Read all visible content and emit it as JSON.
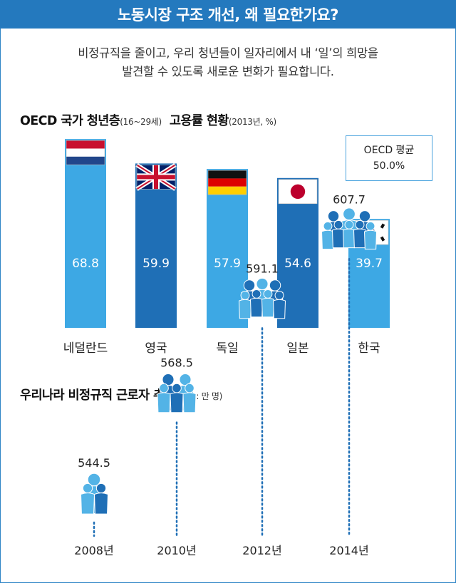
{
  "header": {
    "title": "노동시장 구조 개선, 왜 필요한가요?"
  },
  "intro": {
    "line1": "비정규직을 줄이고, 우리 청년들이 일자리에서 내 ‘일’의 희망을",
    "line2": "발견할 수 있도록 새로운 변화가 필요합니다."
  },
  "section1": {
    "title": "OECD 국가 청년층",
    "title_sub": "(16~29세)",
    "title2": "고용률 현황",
    "title2_sub": "(2013년, %)"
  },
  "avg": {
    "label": "OECD 평균",
    "value": "50.0%"
  },
  "section2": {
    "title": "우리나라 비정규직 근로자 추이",
    "title_sub": "(단위 : 만 명)"
  },
  "colors": {
    "header": "#2479be",
    "bar_light": "#3da8e4",
    "bar_dark": "#1f6fb6",
    "people_light": "#53b3e6",
    "people_dark": "#1f6fb6",
    "dots": "#1f6fb6"
  },
  "chart_data": [
    {
      "type": "bar",
      "categories": [
        "네덜란드",
        "영국",
        "독일",
        "일본",
        "한국"
      ],
      "values": [
        68.8,
        59.9,
        57.9,
        54.6,
        39.7
      ],
      "value_labels": [
        "68.8",
        "59.9",
        "57.9",
        "54.6",
        "39.7"
      ],
      "flags": [
        "netherlands-flag-icon",
        "uk-flag-icon",
        "germany-flag-icon",
        "japan-flag-icon",
        "korea-flag-icon"
      ],
      "bar_colors": [
        "light",
        "dark",
        "light",
        "dark",
        "light"
      ]
    },
    {
      "type": "scatter",
      "categories": [
        "2008년",
        "2010년",
        "2012년",
        "2014년"
      ],
      "values": [
        544.5,
        568.5,
        591.1,
        607.7
      ],
      "value_labels": [
        "544.5",
        "568.5",
        "591.1",
        "607.7"
      ]
    }
  ]
}
